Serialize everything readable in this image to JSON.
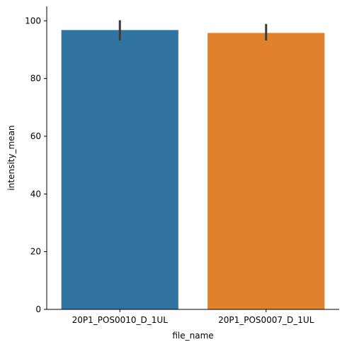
{
  "chart_data": {
    "type": "bar",
    "title": "",
    "xlabel": "file_name",
    "ylabel": "intensity_mean",
    "categories": [
      "20P1_POS0010_D_1UL",
      "20P1_POS0007_D_1UL"
    ],
    "values": [
      96.8,
      95.8
    ],
    "error_bars": [
      {
        "low": 93.2,
        "high": 100.2
      },
      {
        "low": 93.2,
        "high": 98.9
      }
    ],
    "colors": [
      "#3274a1",
      "#e1812c"
    ],
    "error_color": "#3b3b3b",
    "ylim": [
      0,
      105
    ],
    "yticks": [
      0,
      20,
      40,
      60,
      80,
      100
    ],
    "grid": false,
    "legend": "none"
  }
}
